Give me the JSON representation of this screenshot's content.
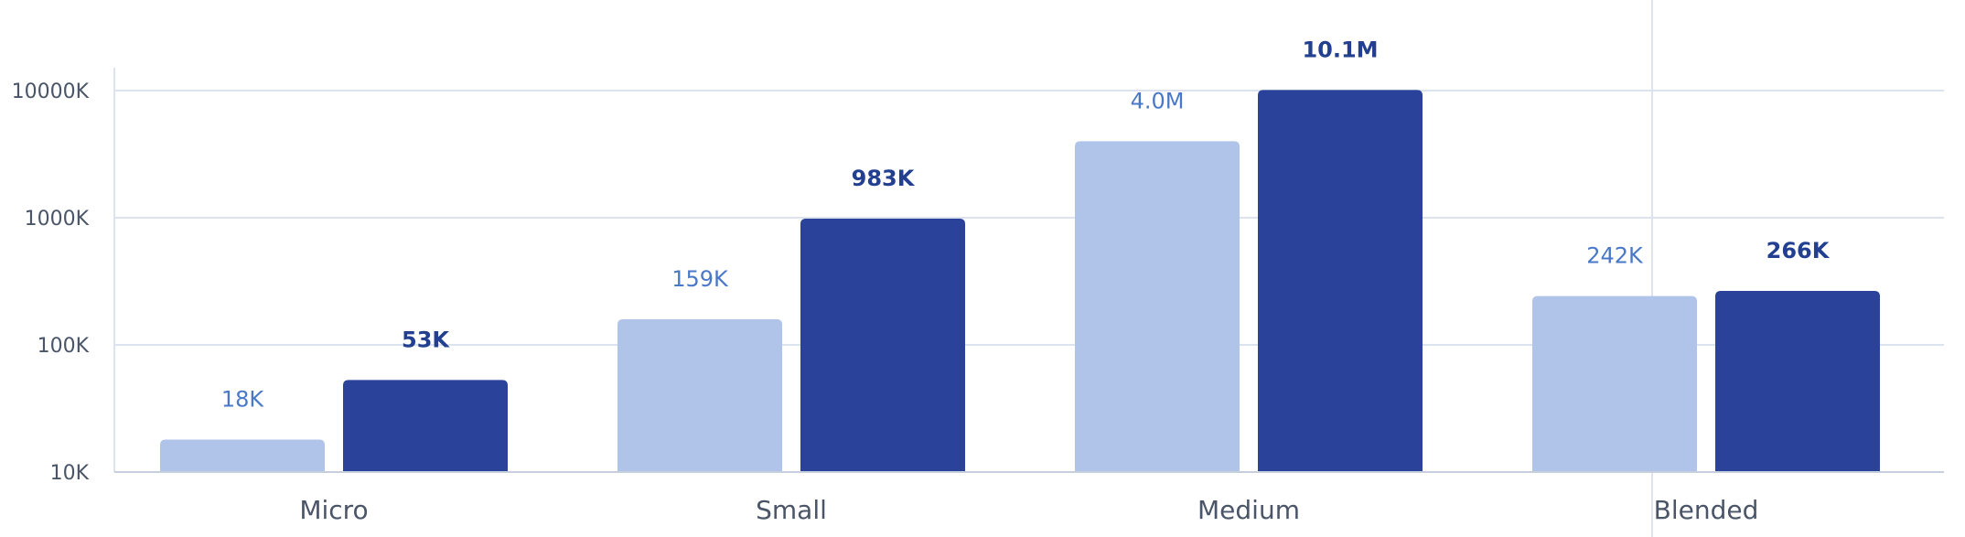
{
  "chart_data": {
    "type": "bar",
    "scale": "log",
    "categories": [
      "Micro",
      "Small",
      "Medium",
      "Blended"
    ],
    "series": [
      {
        "values": [
          18000,
          159000,
          4000000,
          242000
        ],
        "labels": [
          "18K",
          "159K",
          "4.0M",
          "242K"
        ],
        "color": "#b0c4ea",
        "label_color": "#4a78c8"
      },
      {
        "values": [
          53000,
          983000,
          10100000,
          266000
        ],
        "labels": [
          "53K",
          "983K",
          "10.1M",
          "266K"
        ],
        "color": "#2a4299",
        "label_color": "#22408f"
      }
    ],
    "yticks": [
      10000,
      100000,
      1000000,
      10000000
    ],
    "ytick_labels": [
      "10K",
      "100K",
      "1000K",
      "10000K"
    ],
    "ylim": [
      10000,
      10000000
    ],
    "grid": true,
    "gridline_color": "#dde3ee"
  }
}
